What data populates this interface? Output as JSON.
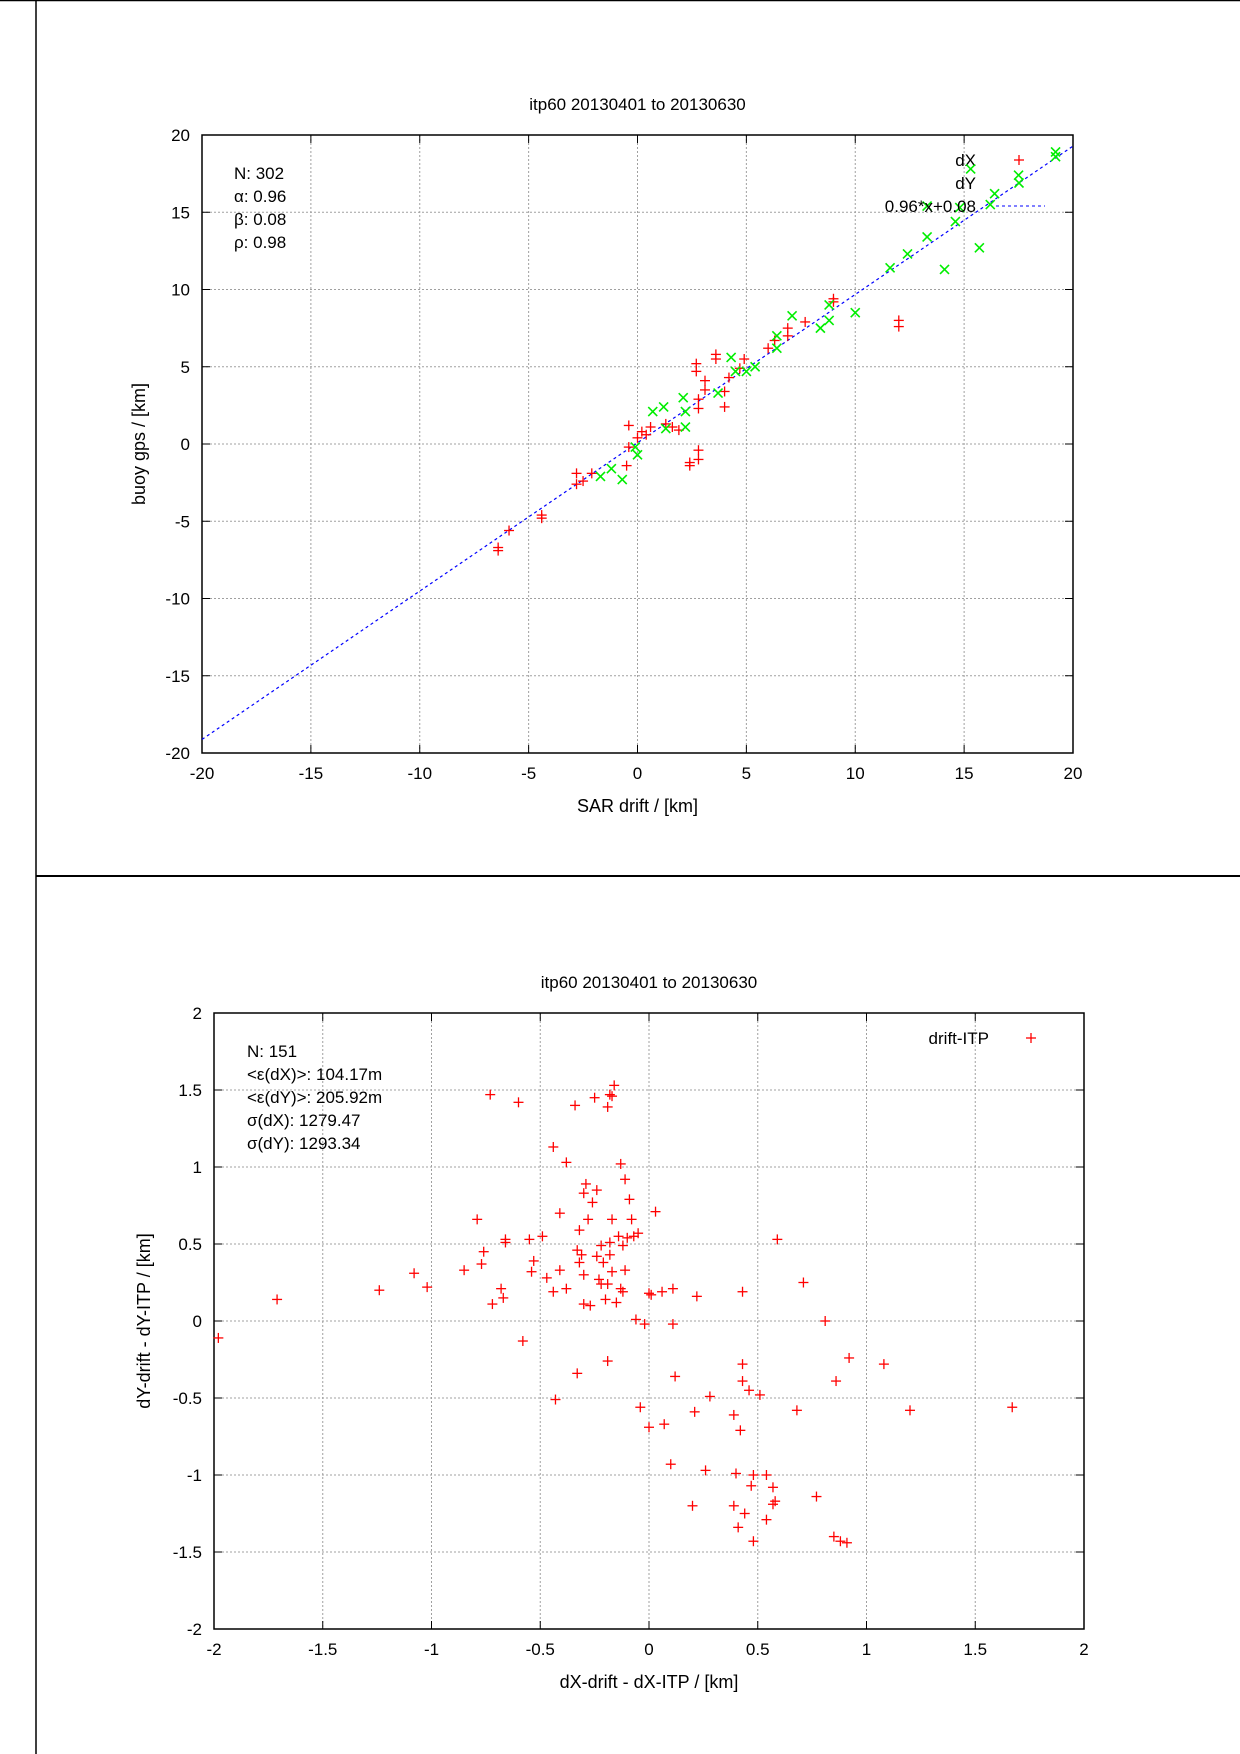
{
  "colors": {
    "dX": "#ff0000",
    "dY": "#00ee00",
    "fit": "#0000ff",
    "drift": "#ff0000",
    "grid": "#a0a0a0"
  },
  "chart_data": [
    {
      "type": "scatter",
      "title": "itp60 20130401 to 20130630",
      "xlabel": "SAR drift / [km]",
      "ylabel": "buoy gps / [km]",
      "xlim": [
        -20,
        20
      ],
      "ylim": [
        -20,
        20
      ],
      "xticks": [
        "-20",
        "-15",
        "-10",
        "-5",
        "0",
        "5",
        "10",
        "15",
        "20"
      ],
      "yticks": [
        "-20",
        "-15",
        "-10",
        "-5",
        "0",
        "5",
        "10",
        "15",
        "20"
      ],
      "grid": true,
      "legend_position": "top-right",
      "annotations": [
        "N: 302",
        "α: 0.96",
        "β: 0.08",
        "ρ: 0.98"
      ],
      "fit": {
        "label": "0.96*x+0.08",
        "slope": 0.96,
        "intercept": 0.08
      },
      "series": [
        {
          "name": "dX",
          "marker": "plus",
          "color": "#ff0000",
          "points": [
            [
              -6.4,
              -6.7
            ],
            [
              -6.4,
              -6.9
            ],
            [
              -5.9,
              -5.6
            ],
            [
              -4.4,
              -4.6
            ],
            [
              -4.4,
              -4.8
            ],
            [
              -2.8,
              -1.9
            ],
            [
              -2.8,
              -2.6
            ],
            [
              -2.5,
              -2.4
            ],
            [
              -2.1,
              -1.9
            ],
            [
              -0.5,
              -1.4
            ],
            [
              -0.4,
              1.2
            ],
            [
              -0.4,
              -0.2
            ],
            [
              0.0,
              0.4
            ],
            [
              0.2,
              0.8
            ],
            [
              0.4,
              0.6
            ],
            [
              0.6,
              1.1
            ],
            [
              1.3,
              1.3
            ],
            [
              1.6,
              1.1
            ],
            [
              1.9,
              0.9
            ],
            [
              2.4,
              -1.2
            ],
            [
              2.4,
              -1.4
            ],
            [
              2.8,
              -0.4
            ],
            [
              2.8,
              -1.0
            ],
            [
              2.7,
              5.2
            ],
            [
              2.7,
              4.7
            ],
            [
              2.8,
              2.9
            ],
            [
              2.8,
              2.3
            ],
            [
              3.1,
              4.1
            ],
            [
              3.1,
              3.5
            ],
            [
              3.6,
              5.8
            ],
            [
              3.6,
              5.5
            ],
            [
              4.0,
              3.4
            ],
            [
              4.0,
              2.4
            ],
            [
              4.2,
              4.3
            ],
            [
              4.7,
              4.9
            ],
            [
              4.9,
              5.5
            ],
            [
              6.0,
              6.2
            ],
            [
              6.3,
              6.7
            ],
            [
              6.9,
              7.5
            ],
            [
              6.9,
              7.0
            ],
            [
              7.7,
              7.9
            ],
            [
              9.0,
              9.4
            ],
            [
              9.0,
              9.2
            ],
            [
              12.0,
              8.0
            ],
            [
              12.0,
              7.6
            ]
          ]
        },
        {
          "name": "dY",
          "marker": "cross",
          "color": "#00ee00",
          "points": [
            [
              -1.7,
              -2.1
            ],
            [
              -1.2,
              -1.6
            ],
            [
              -0.7,
              -2.3
            ],
            [
              -0.1,
              -0.2
            ],
            [
              0.0,
              -0.7
            ],
            [
              0.7,
              2.1
            ],
            [
              1.2,
              2.4
            ],
            [
              1.3,
              1.0
            ],
            [
              2.1,
              3.0
            ],
            [
              2.2,
              2.1
            ],
            [
              2.2,
              1.1
            ],
            [
              3.7,
              3.3
            ],
            [
              4.3,
              5.6
            ],
            [
              4.5,
              4.7
            ],
            [
              5.0,
              4.7
            ],
            [
              5.4,
              5.0
            ],
            [
              6.4,
              7.0
            ],
            [
              6.4,
              6.2
            ],
            [
              7.1,
              8.3
            ],
            [
              8.4,
              7.5
            ],
            [
              8.8,
              8.0
            ],
            [
              8.8,
              9.0
            ],
            [
              10.0,
              8.5
            ],
            [
              11.6,
              11.4
            ],
            [
              12.4,
              12.3
            ],
            [
              13.3,
              13.4
            ],
            [
              13.3,
              15.4
            ],
            [
              14.1,
              11.3
            ],
            [
              14.6,
              14.4
            ],
            [
              14.8,
              15.3
            ],
            [
              15.3,
              17.8
            ],
            [
              15.7,
              12.7
            ],
            [
              16.2,
              15.5
            ],
            [
              16.4,
              16.2
            ],
            [
              17.5,
              17.4
            ],
            [
              19.2,
              18.9
            ],
            [
              19.2,
              18.6
            ]
          ]
        }
      ]
    },
    {
      "type": "scatter",
      "title": "itp60 20130401 to 20130630",
      "xlabel": "dX-drift - dX-ITP / [km]",
      "ylabel": "dY-drift - dY-ITP / [km]",
      "xlim": [
        -2,
        2
      ],
      "ylim": [
        -2,
        2
      ],
      "xticks": [
        "-2",
        "-1.5",
        "-1",
        "-0.5",
        "0",
        "0.5",
        "1",
        "1.5",
        "2"
      ],
      "yticks": [
        "-2",
        "-1.5",
        "-1",
        "-0.5",
        "0",
        "0.5",
        "1",
        "1.5",
        "2"
      ],
      "grid": true,
      "legend_position": "top-right",
      "annotations": [
        "N: 151",
        "<ε(dX)>:  104.17m",
        "<ε(dY)>: 205.92m",
        "σ(dX):  1279.47",
        "σ(dY):  1293.34"
      ],
      "series": [
        {
          "name": "drift-ITP",
          "marker": "plus",
          "color": "#ff0000",
          "points": [
            [
              -1.98,
              -0.11
            ],
            [
              -1.71,
              0.14
            ],
            [
              -1.24,
              0.2
            ],
            [
              -1.08,
              0.31
            ],
            [
              -1.02,
              0.22
            ],
            [
              -0.85,
              0.33
            ],
            [
              -0.79,
              0.66
            ],
            [
              -0.76,
              0.45
            ],
            [
              -0.77,
              0.37
            ],
            [
              -0.72,
              0.11
            ],
            [
              -0.73,
              1.47
            ],
            [
              -0.68,
              0.21
            ],
            [
              -0.67,
              0.15
            ],
            [
              -0.66,
              0.53
            ],
            [
              -0.66,
              0.51
            ],
            [
              -0.6,
              1.42
            ],
            [
              -0.58,
              -0.13
            ],
            [
              -0.55,
              0.53
            ],
            [
              -0.53,
              0.39
            ],
            [
              -0.54,
              0.32
            ],
            [
              -0.49,
              0.55
            ],
            [
              -0.47,
              0.28
            ],
            [
              -0.44,
              1.13
            ],
            [
              -0.44,
              0.19
            ],
            [
              -0.43,
              -0.51
            ],
            [
              -0.41,
              0.33
            ],
            [
              -0.41,
              0.7
            ],
            [
              -0.38,
              1.03
            ],
            [
              -0.38,
              0.21
            ],
            [
              -0.34,
              1.4
            ],
            [
              -0.33,
              0.46
            ],
            [
              -0.33,
              -0.34
            ],
            [
              -0.32,
              0.59
            ],
            [
              -0.32,
              0.38
            ],
            [
              -0.31,
              0.43
            ],
            [
              -0.3,
              0.83
            ],
            [
              -0.29,
              0.89
            ],
            [
              -0.28,
              0.66
            ],
            [
              -0.3,
              0.3
            ],
            [
              -0.3,
              0.11
            ],
            [
              -0.27,
              0.1
            ],
            [
              -0.26,
              0.77
            ],
            [
              -0.25,
              1.45
            ],
            [
              -0.24,
              0.42
            ],
            [
              -0.24,
              0.85
            ],
            [
              -0.23,
              0.27
            ],
            [
              -0.22,
              0.24
            ],
            [
              -0.22,
              0.49
            ],
            [
              -0.21,
              0.38
            ],
            [
              -0.2,
              0.14
            ],
            [
              -0.19,
              -0.26
            ],
            [
              -0.19,
              1.39
            ],
            [
              -0.18,
              1.47
            ],
            [
              -0.17,
              1.46
            ],
            [
              -0.16,
              1.53
            ],
            [
              -0.19,
              0.24
            ],
            [
              -0.18,
              0.51
            ],
            [
              -0.18,
              0.43
            ],
            [
              -0.17,
              0.66
            ],
            [
              -0.17,
              0.32
            ],
            [
              -0.15,
              0.12
            ],
            [
              -0.14,
              0.55
            ],
            [
              -0.13,
              1.02
            ],
            [
              -0.13,
              0.21
            ],
            [
              -0.12,
              0.49
            ],
            [
              -0.12,
              0.19
            ],
            [
              -0.11,
              0.92
            ],
            [
              -0.11,
              0.33
            ],
            [
              -0.1,
              0.54
            ],
            [
              -0.09,
              0.79
            ],
            [
              -0.08,
              0.66
            ],
            [
              -0.07,
              0.55
            ],
            [
              -0.05,
              0.57
            ],
            [
              -0.06,
              0.01
            ],
            [
              -0.04,
              -0.56
            ],
            [
              -0.02,
              -0.02
            ],
            [
              0.0,
              0.18
            ],
            [
              0.0,
              -0.69
            ],
            [
              0.01,
              0.17
            ],
            [
              0.03,
              0.71
            ],
            [
              0.06,
              0.19
            ],
            [
              0.07,
              -0.67
            ],
            [
              0.1,
              -0.93
            ],
            [
              0.11,
              0.21
            ],
            [
              0.11,
              -0.02
            ],
            [
              0.12,
              -0.36
            ],
            [
              0.21,
              -0.59
            ],
            [
              0.22,
              0.16
            ],
            [
              0.2,
              -1.2
            ],
            [
              0.26,
              -0.97
            ],
            [
              0.28,
              -0.49
            ],
            [
              0.39,
              -0.61
            ],
            [
              0.39,
              -1.2
            ],
            [
              0.4,
              -0.99
            ],
            [
              0.41,
              -1.34
            ],
            [
              0.42,
              -0.71
            ],
            [
              0.43,
              0.19
            ],
            [
              0.43,
              -0.39
            ],
            [
              0.43,
              -0.28
            ],
            [
              0.44,
              -1.25
            ],
            [
              0.46,
              -0.45
            ],
            [
              0.47,
              -1.07
            ],
            [
              0.48,
              -1.0
            ],
            [
              0.48,
              -1.43
            ],
            [
              0.51,
              -0.48
            ],
            [
              0.54,
              -1.29
            ],
            [
              0.54,
              -1.0
            ],
            [
              0.57,
              -1.19
            ],
            [
              0.57,
              -1.08
            ],
            [
              0.58,
              -1.17
            ],
            [
              0.59,
              0.53
            ],
            [
              0.68,
              -0.58
            ],
            [
              0.71,
              0.25
            ],
            [
              0.77,
              -1.14
            ],
            [
              0.81,
              0.0
            ],
            [
              0.85,
              -1.4
            ],
            [
              0.86,
              -0.39
            ],
            [
              0.88,
              -1.43
            ],
            [
              0.91,
              -1.44
            ],
            [
              0.92,
              -0.24
            ],
            [
              1.08,
              -0.28
            ],
            [
              1.2,
              -0.58
            ],
            [
              1.67,
              -0.56
            ]
          ]
        }
      ]
    }
  ]
}
